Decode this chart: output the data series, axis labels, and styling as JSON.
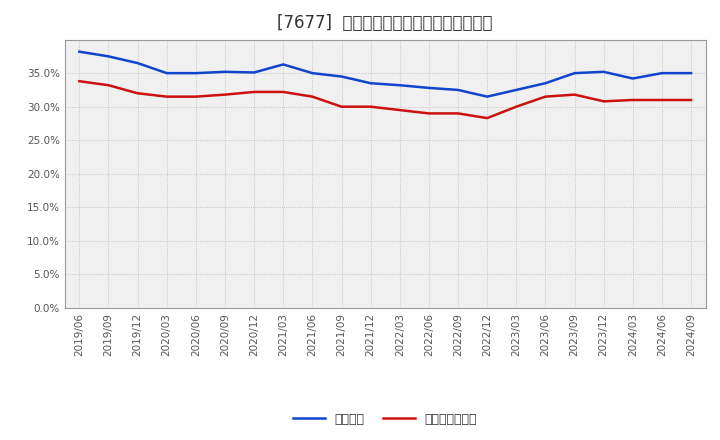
{
  "title": "[7677]  固定比率、固定長期適合率の推移",
  "title_fontsize": 12,
  "background_color": "#ffffff",
  "plot_bg_color": "#f0f0f0",
  "grid_color": "#bbbbbb",
  "series": [
    {
      "name": "固定比率",
      "color": "#1144cc",
      "values": [
        38.2,
        37.5,
        36.5,
        35.0,
        35.0,
        35.2,
        35.1,
        36.3,
        35.0,
        34.5,
        33.5,
        33.2,
        32.8,
        32.5,
        31.5,
        32.5,
        33.5,
        35.0,
        35.2,
        34.2,
        35.0,
        35.0
      ]
    },
    {
      "name": "固定長期適合率",
      "color": "#cc1111",
      "values": [
        33.8,
        33.2,
        32.0,
        31.5,
        31.5,
        31.8,
        32.2,
        32.2,
        31.5,
        30.0,
        30.0,
        29.5,
        29.0,
        29.0,
        28.3,
        30.0,
        31.5,
        31.8,
        30.8,
        31.0,
        31.0,
        31.0
      ]
    }
  ],
  "x_tick_labels": [
    "2019/06",
    "2019/09",
    "2019/12",
    "2020/03",
    "2020/06",
    "2020/09",
    "2020/12",
    "2021/03",
    "2021/06",
    "2021/09",
    "2021/12",
    "2022/03",
    "2022/06",
    "2022/09",
    "2022/12",
    "2023/03",
    "2023/06",
    "2023/09",
    "2023/12",
    "2024/03",
    "2024/06",
    "2024/09"
  ],
  "ylim": [
    0.0,
    40.0
  ],
  "yticks": [
    0.0,
    5.0,
    10.0,
    15.0,
    20.0,
    25.0,
    30.0,
    35.0
  ],
  "legend_fontsize": 9,
  "tick_fontsize": 7.5,
  "line_width": 1.8
}
